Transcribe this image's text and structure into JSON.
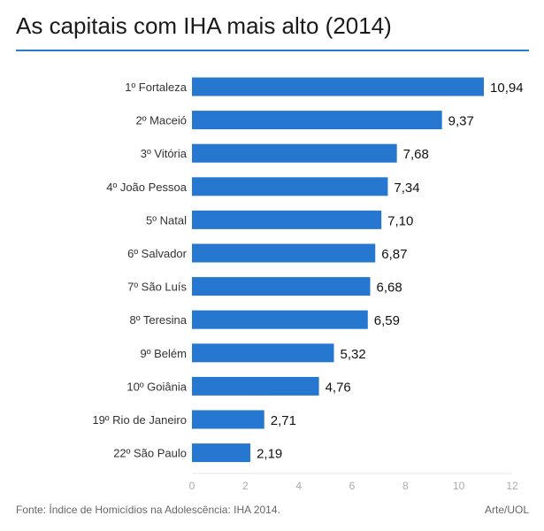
{
  "title": "As capitais com IHA mais alto (2014)",
  "footer": {
    "source": "Fonte: Índice de Homicídios na Adolescência: IHA 2014.",
    "credit": "Arte/UOL"
  },
  "colors": {
    "bar": "#2677cf",
    "accent_rule": "#2a78cf",
    "label_text": "#333333",
    "value_text": "#111111",
    "axis_text": "#aaaaaa"
  },
  "chart_data": {
    "type": "bar",
    "orientation": "horizontal",
    "categories": [
      "1º Fortaleza",
      "2º Maceió",
      "3º Vitória",
      "4º João Pessoa",
      "5º Natal",
      "6º Salvador",
      "7º São Luís",
      "8º Teresina",
      "9º Belém",
      "10º Goiânia",
      "19º Rio de Janeiro",
      "22º São Paulo"
    ],
    "values": [
      10.94,
      9.37,
      7.68,
      7.34,
      7.1,
      6.87,
      6.68,
      6.59,
      5.32,
      4.76,
      2.71,
      2.19
    ],
    "value_labels": [
      "10,94",
      "9,37",
      "7,68",
      "7,34",
      "7,10",
      "6,87",
      "6,68",
      "6,59",
      "5,32",
      "4,76",
      "2,71",
      "2,19"
    ],
    "xlim": [
      0,
      12
    ],
    "xticks": [
      0,
      2,
      4,
      6,
      8,
      10,
      12
    ],
    "grid": false,
    "legend": "none"
  }
}
